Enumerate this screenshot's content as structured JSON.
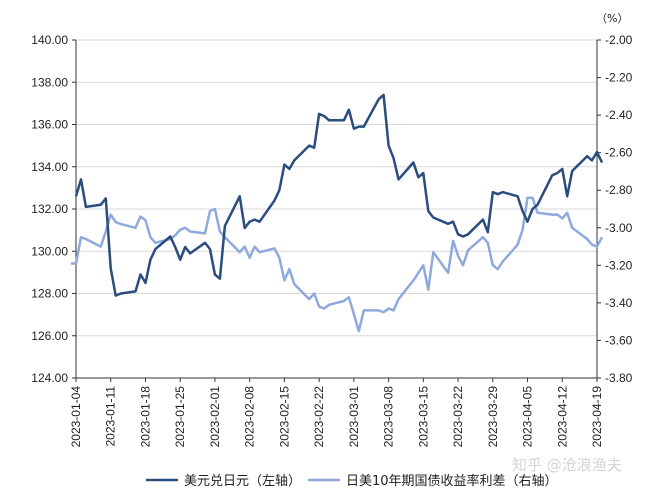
{
  "chart_data": {
    "type": "line",
    "right_axis_unit": "（%）",
    "watermark": "知乎 @沧浪渔夫",
    "x_ticks": [
      "2023-01-04",
      "2023-01-11",
      "2023-01-18",
      "2023-01-25",
      "2023-02-01",
      "2023-02-08",
      "2023-02-15",
      "2023-02-22",
      "2023-03-01",
      "2023-03-08",
      "2023-03-15",
      "2023-03-22",
      "2023-03-29",
      "2023-04-05",
      "2023-04-12",
      "2023-04-19"
    ],
    "ylim_left": [
      124,
      140
    ],
    "ylim_right": [
      -3.8,
      -2.0
    ],
    "y_ticks_left": [
      "124.00",
      "126.00",
      "128.00",
      "130.00",
      "132.00",
      "134.00",
      "136.00",
      "138.00",
      "140.00"
    ],
    "y_ticks_right": [
      "-3.80",
      "-3.60",
      "-3.40",
      "-3.20",
      "-3.00",
      "-2.80",
      "-2.60",
      "-2.40",
      "-2.20",
      "-2.00"
    ],
    "colors": {
      "usdjpy": "#2b4c7e",
      "spread": "#8eaadc",
      "axis": "#333333",
      "grid": "#d9d9d9"
    },
    "series": [
      {
        "name": "美元兑日元（左轴）",
        "axis": "left",
        "x": [
          "2023-01-04",
          "2023-01-05",
          "2023-01-06",
          "2023-01-09",
          "2023-01-10",
          "2023-01-11",
          "2023-01-12",
          "2023-01-13",
          "2023-01-16",
          "2023-01-17",
          "2023-01-18",
          "2023-01-19",
          "2023-01-20",
          "2023-01-23",
          "2023-01-24",
          "2023-01-25",
          "2023-01-26",
          "2023-01-27",
          "2023-01-30",
          "2023-01-31",
          "2023-02-01",
          "2023-02-02",
          "2023-02-03",
          "2023-02-06",
          "2023-02-07",
          "2023-02-08",
          "2023-02-09",
          "2023-02-10",
          "2023-02-13",
          "2023-02-14",
          "2023-02-15",
          "2023-02-16",
          "2023-02-17",
          "2023-02-20",
          "2023-02-21",
          "2023-02-22",
          "2023-02-23",
          "2023-02-24",
          "2023-02-27",
          "2023-02-28",
          "2023-03-01",
          "2023-03-02",
          "2023-03-03",
          "2023-03-06",
          "2023-03-07",
          "2023-03-08",
          "2023-03-09",
          "2023-03-10",
          "2023-03-13",
          "2023-03-14",
          "2023-03-15",
          "2023-03-16",
          "2023-03-17",
          "2023-03-20",
          "2023-03-21",
          "2023-03-22",
          "2023-03-23",
          "2023-03-24",
          "2023-03-27",
          "2023-03-28",
          "2023-03-29",
          "2023-03-30",
          "2023-03-31",
          "2023-04-03",
          "2023-04-04",
          "2023-04-05",
          "2023-04-06",
          "2023-04-07",
          "2023-04-10",
          "2023-04-11",
          "2023-04-12",
          "2023-04-13",
          "2023-04-14",
          "2023-04-17",
          "2023-04-18",
          "2023-04-19",
          "2023-04-20"
        ],
        "values": [
          132.6,
          133.4,
          132.1,
          132.2,
          132.5,
          129.2,
          127.9,
          128.0,
          128.1,
          128.9,
          128.5,
          129.6,
          130.1,
          130.7,
          130.2,
          129.6,
          130.2,
          129.9,
          130.4,
          130.1,
          128.9,
          128.7,
          131.2,
          132.6,
          131.1,
          131.4,
          131.5,
          131.4,
          132.4,
          132.9,
          134.1,
          133.9,
          134.3,
          135.0,
          134.9,
          136.5,
          136.4,
          136.2,
          136.2,
          136.7,
          135.8,
          135.9,
          135.9,
          137.2,
          137.4,
          135.0,
          134.4,
          133.4,
          134.2,
          133.5,
          133.7,
          131.9,
          131.6,
          131.3,
          131.4,
          130.8,
          130.7,
          130.8,
          131.5,
          130.9,
          132.8,
          132.7,
          132.8,
          132.6,
          131.9,
          131.4,
          132.0,
          132.2,
          133.6,
          133.7,
          133.9,
          132.6,
          133.8,
          134.5,
          134.3,
          134.7,
          134.2
        ]
      },
      {
        "name": "日美10年期国债收益率利差（右轴）",
        "axis": "right",
        "x": [
          "2023-01-03",
          "2023-01-04",
          "2023-01-05",
          "2023-01-06",
          "2023-01-09",
          "2023-01-10",
          "2023-01-11",
          "2023-01-12",
          "2023-01-13",
          "2023-01-16",
          "2023-01-17",
          "2023-01-18",
          "2023-01-19",
          "2023-01-20",
          "2023-01-23",
          "2023-01-24",
          "2023-01-25",
          "2023-01-26",
          "2023-01-27",
          "2023-01-30",
          "2023-01-31",
          "2023-02-01",
          "2023-02-02",
          "2023-02-03",
          "2023-02-06",
          "2023-02-07",
          "2023-02-08",
          "2023-02-09",
          "2023-02-10",
          "2023-02-13",
          "2023-02-14",
          "2023-02-15",
          "2023-02-16",
          "2023-02-17",
          "2023-02-20",
          "2023-02-21",
          "2023-02-22",
          "2023-02-23",
          "2023-02-24",
          "2023-02-27",
          "2023-02-28",
          "2023-03-01",
          "2023-03-02",
          "2023-03-03",
          "2023-03-06",
          "2023-03-07",
          "2023-03-08",
          "2023-03-09",
          "2023-03-10",
          "2023-03-13",
          "2023-03-14",
          "2023-03-15",
          "2023-03-16",
          "2023-03-17",
          "2023-03-20",
          "2023-03-21",
          "2023-03-22",
          "2023-03-23",
          "2023-03-24",
          "2023-03-27",
          "2023-03-28",
          "2023-03-29",
          "2023-03-30",
          "2023-03-31",
          "2023-04-03",
          "2023-04-04",
          "2023-04-05",
          "2023-04-06",
          "2023-04-07",
          "2023-04-10",
          "2023-04-11",
          "2023-04-12",
          "2023-04-13",
          "2023-04-14",
          "2023-04-17",
          "2023-04-18",
          "2023-04-19",
          "2023-04-20"
        ],
        "values": [
          -3.19,
          -3.19,
          -3.05,
          -3.06,
          -3.1,
          -3.02,
          -2.93,
          -2.97,
          -2.98,
          -3.0,
          -2.94,
          -2.96,
          -3.05,
          -3.08,
          -3.06,
          -3.04,
          -3.01,
          -3.0,
          -3.02,
          -3.03,
          -2.91,
          -2.9,
          -3.02,
          -3.05,
          -3.13,
          -3.1,
          -3.16,
          -3.1,
          -3.13,
          -3.11,
          -3.16,
          -3.28,
          -3.22,
          -3.3,
          -3.38,
          -3.35,
          -3.42,
          -3.43,
          -3.41,
          -3.39,
          -3.37,
          -3.46,
          -3.55,
          -3.44,
          -3.44,
          -3.45,
          -3.43,
          -3.44,
          -3.38,
          -3.28,
          -3.24,
          -3.2,
          -3.33,
          -3.13,
          -3.24,
          -3.07,
          -3.15,
          -3.2,
          -3.12,
          -3.05,
          -3.08,
          -3.2,
          -3.22,
          -3.18,
          -3.09,
          -3.01,
          -2.84,
          -2.84,
          -2.92,
          -2.93,
          -2.93,
          -2.95,
          -2.92,
          -3.0,
          -3.06,
          -3.09,
          -3.1,
          -3.05
        ]
      }
    ]
  }
}
